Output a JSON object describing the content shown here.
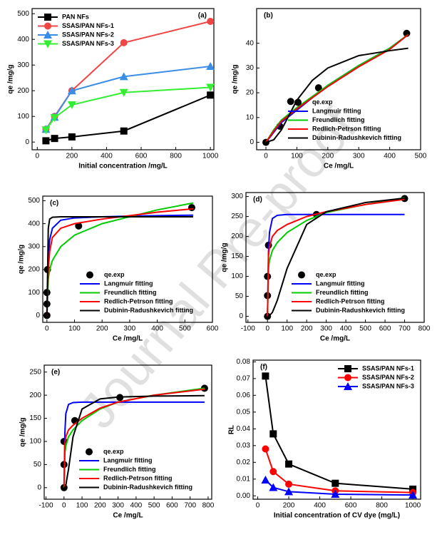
{
  "watermark": "Journal Pre-proof",
  "chart_data": [
    {
      "type": "line",
      "annotation": "(a)",
      "xlabel": "Initial concentration /mg/L",
      "ylabel": "qe /mg/g",
      "xlim": [
        -30,
        1020
      ],
      "ylim": [
        -30,
        520
      ],
      "xticks": [
        0,
        200,
        400,
        600,
        800,
        1000
      ],
      "yticks": [
        0,
        100,
        200,
        300,
        400,
        500
      ],
      "legend": "upper left",
      "series": [
        {
          "name": "PAN NFs",
          "color": "#000000",
          "marker": "square",
          "line": true,
          "x": [
            50,
            100,
            200,
            500,
            1000
          ],
          "values": [
            5,
            14,
            20,
            43,
            183
          ]
        },
        {
          "name": "SSAS/PAN NFs-1",
          "color": "#f04545",
          "marker": "circle",
          "line": true,
          "x": [
            50,
            100,
            200,
            500,
            1000
          ],
          "values": [
            50,
            100,
            200,
            387,
            470
          ]
        },
        {
          "name": "SSAS/PAN NFs-2",
          "color": "#3a8ee6",
          "marker": "triangle-up",
          "line": true,
          "x": [
            50,
            100,
            200,
            500,
            1000
          ],
          "values": [
            50,
            97,
            200,
            255,
            295
          ]
        },
        {
          "name": "SSAS/PAN NFs-3",
          "color": "#33ee33",
          "marker": "triangle-down",
          "line": true,
          "x": [
            50,
            100,
            200,
            500,
            1000
          ],
          "values": [
            47,
            95,
            145,
            193,
            213
          ]
        }
      ]
    },
    {
      "type": "line",
      "annotation": "(b)",
      "xlabel": "Ce /mg/L",
      "ylabel": "qe /mg/g",
      "xlim": [
        -30,
        500
      ],
      "ylim": [
        -3,
        54
      ],
      "xticks": [
        0,
        100,
        200,
        300,
        400,
        500
      ],
      "yticks": [
        0,
        10,
        20,
        30,
        40
      ],
      "legend": "lower right",
      "series": [
        {
          "name": "qe.exp",
          "color": "#000000",
          "marker": "circle",
          "line": false,
          "x": [
            0,
            45,
            80,
            170,
            455
          ],
          "values": [
            0,
            6.5,
            16.5,
            22,
            44
          ]
        },
        {
          "name": "Langmuir fitting",
          "color": "#0000ff",
          "marker": "none",
          "line": true,
          "x": [
            0,
            25,
            50,
            100,
            150,
            200,
            300,
            400,
            460
          ],
          "values": [
            0,
            4,
            8,
            13,
            18,
            23,
            31,
            38,
            43.5
          ]
        },
        {
          "name": "Freundlich fitting",
          "color": "#00cc00",
          "marker": "none",
          "line": true,
          "x": [
            0,
            25,
            50,
            100,
            150,
            200,
            300,
            400,
            460
          ],
          "values": [
            0,
            5,
            9,
            14,
            18.5,
            23,
            31,
            38,
            43.5
          ]
        },
        {
          "name": "Redlich-Petrson fitting",
          "color": "#ff0000",
          "marker": "none",
          "line": true,
          "x": [
            0,
            25,
            50,
            100,
            150,
            200,
            300,
            400,
            460
          ],
          "values": [
            0,
            4.5,
            8.5,
            13.5,
            18,
            22.5,
            30.5,
            37.5,
            43.5
          ]
        },
        {
          "name": "Dubinin-Radushkevich fitting",
          "color": "#000000",
          "marker": "none",
          "line": true,
          "x": [
            0,
            25,
            50,
            100,
            150,
            200,
            300,
            400,
            460
          ],
          "values": [
            0,
            1,
            5,
            17,
            25,
            30,
            35,
            37,
            38
          ]
        }
      ]
    },
    {
      "type": "line",
      "annotation": "(c)",
      "xlabel": "Ce /mg/L",
      "ylabel": "qe /mg/g",
      "xlim": [
        -15,
        600
      ],
      "ylim": [
        -30,
        520
      ],
      "xticks": [
        0,
        100,
        200,
        300,
        400,
        500,
        600
      ],
      "yticks": [
        0,
        100,
        200,
        300,
        400,
        500
      ],
      "legend": "lower right",
      "series": [
        {
          "name": "qe.exp",
          "color": "#000000",
          "marker": "circle",
          "line": false,
          "x": [
            0,
            0,
            0,
            2,
            115,
            525
          ],
          "values": [
            0,
            50,
            100,
            200,
            390,
            470
          ]
        },
        {
          "name": "Langmuir fitting",
          "color": "#0000ff",
          "marker": "none",
          "line": true,
          "x": [
            0,
            5,
            10,
            20,
            50,
            100,
            200,
            300,
            400,
            530
          ],
          "values": [
            0,
            250,
            330,
            380,
            415,
            425,
            430,
            433,
            435,
            437
          ]
        },
        {
          "name": "Freundlich fitting",
          "color": "#00cc00",
          "marker": "none",
          "line": true,
          "x": [
            0,
            5,
            10,
            20,
            50,
            100,
            200,
            300,
            400,
            530
          ],
          "values": [
            0,
            160,
            200,
            240,
            300,
            350,
            400,
            430,
            460,
            490
          ]
        },
        {
          "name": "Redlich-Petrson fitting",
          "color": "#ff0000",
          "marker": "none",
          "line": true,
          "x": [
            0,
            5,
            10,
            20,
            50,
            100,
            200,
            300,
            400,
            530
          ],
          "values": [
            0,
            200,
            280,
            340,
            380,
            400,
            420,
            435,
            450,
            465
          ]
        },
        {
          "name": "Dubinin-Radushkevich fitting",
          "color": "#000000",
          "marker": "none",
          "line": true,
          "x": [
            0,
            5,
            10,
            20,
            50,
            100,
            200,
            300,
            400,
            530
          ],
          "values": [
            0,
            380,
            420,
            428,
            430,
            430,
            430,
            430,
            430,
            430
          ]
        }
      ]
    },
    {
      "type": "line",
      "annotation": "(d)",
      "xlabel": "Ce /mg/L",
      "ylabel": "qe /mg/g",
      "xlim": [
        -110,
        800
      ],
      "ylim": [
        -15,
        310
      ],
      "xticks": [
        -100,
        0,
        100,
        200,
        300,
        400,
        500,
        600,
        700,
        800
      ],
      "yticks": [
        0,
        50,
        100,
        150,
        200,
        250,
        300
      ],
      "legend": "lower right",
      "series": [
        {
          "name": "qe.exp",
          "color": "#000000",
          "marker": "circle",
          "line": false,
          "x": [
            0,
            0,
            0,
            5,
            250,
            700
          ],
          "values": [
            0,
            52,
            100,
            178,
            255,
            295
          ]
        },
        {
          "name": "Langmuir fitting",
          "color": "#0000ff",
          "marker": "none",
          "line": true,
          "x": [
            0,
            5,
            10,
            25,
            50,
            100,
            200,
            300,
            500,
            700
          ],
          "values": [
            0,
            160,
            210,
            245,
            253,
            255,
            255,
            255,
            255,
            255
          ]
        },
        {
          "name": "Freundlich fitting",
          "color": "#00cc00",
          "marker": "none",
          "line": true,
          "x": [
            0,
            5,
            10,
            25,
            50,
            100,
            200,
            300,
            500,
            700
          ],
          "values": [
            0,
            120,
            140,
            165,
            185,
            210,
            240,
            260,
            280,
            297
          ]
        },
        {
          "name": "Redlich-Petrson fitting",
          "color": "#ff0000",
          "marker": "none",
          "line": true,
          "x": [
            0,
            5,
            10,
            25,
            50,
            100,
            200,
            300,
            500,
            700
          ],
          "values": [
            0,
            150,
            175,
            200,
            215,
            230,
            250,
            262,
            280,
            293
          ]
        },
        {
          "name": "Dubinin-Radushkevich fitting",
          "color": "#000000",
          "marker": "none",
          "line": true,
          "x": [
            0,
            5,
            10,
            25,
            50,
            100,
            200,
            300,
            500,
            700
          ],
          "values": [
            0,
            0,
            2,
            10,
            40,
            120,
            230,
            262,
            285,
            296
          ]
        }
      ]
    },
    {
      "type": "line",
      "annotation": "(e)",
      "xlabel": "Ce /mg/L",
      "ylabel": "qe /mg/g",
      "xlim": [
        -110,
        820
      ],
      "ylim": [
        -25,
        265
      ],
      "xticks": [
        -100,
        0,
        100,
        200,
        300,
        400,
        500,
        600,
        700,
        800
      ],
      "yticks": [
        0,
        50,
        100,
        150,
        200,
        250
      ],
      "legend": "lower right",
      "series": [
        {
          "name": "qe.exp",
          "color": "#000000",
          "marker": "circle",
          "line": false,
          "x": [
            0,
            0,
            0,
            60,
            310,
            780
          ],
          "values": [
            0,
            50,
            100,
            145,
            195,
            215
          ]
        },
        {
          "name": "Langmuir fitting",
          "color": "#0000ff",
          "marker": "none",
          "line": true,
          "x": [
            0,
            5,
            10,
            25,
            50,
            100,
            200,
            300,
            500,
            780
          ],
          "values": [
            0,
            120,
            160,
            180,
            184,
            185,
            185,
            185,
            185,
            185
          ]
        },
        {
          "name": "Freundlich fitting",
          "color": "#00cc00",
          "marker": "none",
          "line": true,
          "x": [
            0,
            5,
            10,
            25,
            50,
            100,
            200,
            300,
            500,
            780
          ],
          "values": [
            0,
            75,
            90,
            110,
            125,
            145,
            170,
            185,
            200,
            215
          ]
        },
        {
          "name": "Redlich-Petrson fitting",
          "color": "#ff0000",
          "marker": "none",
          "line": true,
          "x": [
            0,
            5,
            10,
            25,
            50,
            100,
            200,
            300,
            500,
            780
          ],
          "values": [
            0,
            95,
            110,
            125,
            135,
            150,
            172,
            185,
            200,
            213
          ]
        },
        {
          "name": "Dubinin-Radushkevich fitting",
          "color": "#000000",
          "marker": "none",
          "line": true,
          "x": [
            0,
            5,
            10,
            25,
            50,
            100,
            200,
            300,
            500,
            780
          ],
          "values": [
            0,
            0,
            5,
            40,
            110,
            170,
            192,
            196,
            198,
            199
          ]
        }
      ]
    },
    {
      "type": "line",
      "annotation": "(f)",
      "xlabel": "Initial concentration of CV dye (mg/L)",
      "ylabel": "RL",
      "xlim": [
        -30,
        1050
      ],
      "ylim": [
        -0.002,
        0.081
      ],
      "xticks": [
        0,
        200,
        400,
        600,
        800,
        1000
      ],
      "yticks": [
        {
          "value": 0,
          "label": "0.00"
        },
        {
          "value": 0.01,
          "label": "0.01"
        },
        {
          "value": 0.02,
          "label": "0.02"
        },
        {
          "value": 0.03,
          "label": "0.03"
        },
        {
          "value": 0.04,
          "label": "0.04"
        },
        {
          "value": 0.05,
          "label": "0.05"
        },
        {
          "value": 0.06,
          "label": "0.06"
        },
        {
          "value": 0.07,
          "label": "0.07"
        },
        {
          "value": 0.08,
          "label": "0.08"
        }
      ],
      "legend": "upper right",
      "series": [
        {
          "name": "SSAS/PAN NFs-1",
          "color": "#000000",
          "marker": "square",
          "line": true,
          "x": [
            50,
            100,
            200,
            500,
            1000
          ],
          "values": [
            0.0715,
            0.037,
            0.019,
            0.0075,
            0.004
          ]
        },
        {
          "name": "SSAS/PAN NFs-2",
          "color": "#ff0000",
          "marker": "circle",
          "line": true,
          "x": [
            50,
            100,
            200,
            500,
            1000
          ],
          "values": [
            0.028,
            0.0145,
            0.007,
            0.003,
            0.002
          ]
        },
        {
          "name": "SSAS/PAN NFs-3",
          "color": "#0000ff",
          "marker": "triangle-up",
          "line": true,
          "x": [
            50,
            100,
            200,
            500,
            1000
          ],
          "values": [
            0.0095,
            0.005,
            0.0025,
            0.001,
            0.0005
          ]
        }
      ]
    }
  ]
}
